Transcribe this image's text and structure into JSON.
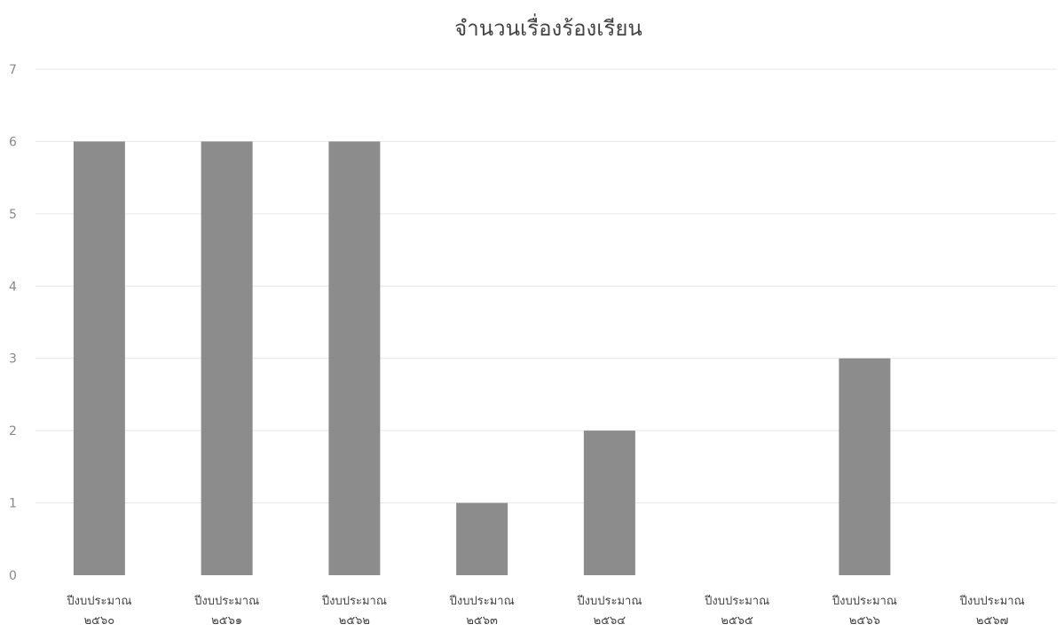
{
  "chart_data": {
    "type": "bar",
    "title": "จำนวนเรื่องร้องเรียน",
    "xlabel": "",
    "ylabel": "",
    "ylim": [
      0,
      7
    ],
    "yticks": [
      0,
      1,
      2,
      3,
      4,
      5,
      6,
      7
    ],
    "grid": true,
    "legend": "none",
    "bar_color": "#8c8c8c",
    "categories": [
      [
        "ปีงบประมาณ",
        "๒๕๖๐"
      ],
      [
        "ปีงบประมาณ",
        "๒๕๖๑"
      ],
      [
        "ปีงบประมาณ",
        "๒๕๖๒"
      ],
      [
        "ปีงบประมาณ",
        "๒๕๖๓"
      ],
      [
        "ปีงบประมาณ",
        "๒๕๖๔"
      ],
      [
        "ปีงบประมาณ",
        "๒๕๖๕"
      ],
      [
        "ปีงบประมาณ",
        "๒๕๖๖"
      ],
      [
        "ปีงบประมาณ",
        "๒๕๖๗"
      ]
    ],
    "values": [
      6,
      6,
      6,
      1,
      2,
      0,
      3,
      0
    ]
  }
}
